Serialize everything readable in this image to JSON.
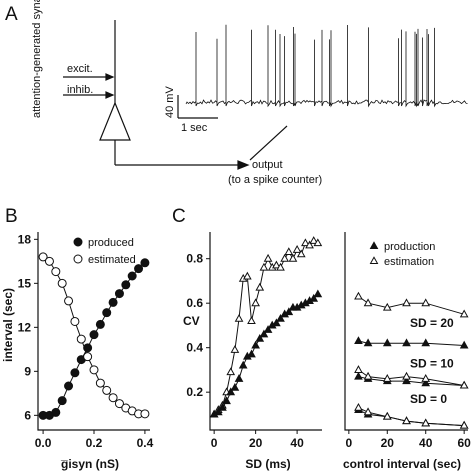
{
  "panels": {
    "a": "A",
    "b": "B",
    "c": "C"
  },
  "diagram_a": {
    "input_label": "attention-generated synaptic activity",
    "excit_label": "excit.",
    "inhib_label": "inhib.",
    "output_label": "output",
    "output_sub_label": "(to a spike counter)",
    "scale_mv": "40 mV",
    "scale_sec": "1 sec"
  },
  "chart_data": [
    {
      "type": "line",
      "panel": "B",
      "xlabel": "g̅isyn (nS)",
      "ylabel": "interval (sec)",
      "xlim": [
        -0.02,
        0.42
      ],
      "ylim": [
        5,
        18.5
      ],
      "xticks": [
        "0.0",
        "0.2",
        "0.4"
      ],
      "xtick_values": [
        0.0,
        0.2,
        0.4
      ],
      "yticks": [
        "6",
        "9",
        "12",
        "15",
        "18"
      ],
      "ytick_values": [
        6,
        9,
        12,
        15,
        18
      ],
      "x": [
        0.0,
        0.025,
        0.05,
        0.075,
        0.1,
        0.125,
        0.15,
        0.175,
        0.2,
        0.225,
        0.25,
        0.275,
        0.3,
        0.325,
        0.35,
        0.375,
        0.4
      ],
      "legend_position": "top-right",
      "series": [
        {
          "name": "produced",
          "marker": "filled-circle",
          "values": [
            6.0,
            6.0,
            6.2,
            7.0,
            8.0,
            8.9,
            9.8,
            10.6,
            11.5,
            12.2,
            13.0,
            13.7,
            14.3,
            14.9,
            15.5,
            16.0,
            16.4
          ]
        },
        {
          "name": "estimated",
          "marker": "open-circle",
          "values": [
            16.8,
            16.5,
            15.8,
            15.0,
            13.8,
            12.4,
            11.2,
            10.0,
            9.1,
            8.2,
            7.7,
            7.2,
            6.8,
            6.5,
            6.3,
            6.1,
            6.1
          ]
        }
      ]
    },
    {
      "type": "line",
      "panel": "C-left",
      "xlabel": "SD (ms)",
      "ylabel": "CV",
      "xlim": [
        -2,
        52
      ],
      "ylim": [
        0.03,
        0.92
      ],
      "xticks": [
        "0",
        "20",
        "40"
      ],
      "xtick_values": [
        0,
        20,
        40
      ],
      "yticks": [
        "0.2",
        "0.4",
        "0.6",
        "0.8"
      ],
      "ytick_values": [
        0.2,
        0.4,
        0.6,
        0.8
      ],
      "series": [
        {
          "name": "estimation",
          "marker": "open-triangle",
          "x": [
            0,
            2,
            4,
            6,
            8,
            10,
            12,
            14,
            16,
            18,
            20,
            22,
            24,
            26,
            28,
            30,
            32,
            34,
            36,
            38,
            40,
            42,
            44,
            46,
            48,
            50
          ],
          "values": [
            0.1,
            0.12,
            0.14,
            0.2,
            0.29,
            0.39,
            0.53,
            0.71,
            0.72,
            0.52,
            0.6,
            0.67,
            0.76,
            0.8,
            0.76,
            0.77,
            0.76,
            0.8,
            0.83,
            0.8,
            0.84,
            0.82,
            0.87,
            0.86,
            0.88,
            0.87
          ]
        },
        {
          "name": "production",
          "marker": "filled-triangle",
          "x": [
            0,
            2,
            4,
            6,
            8,
            10,
            12,
            14,
            16,
            18,
            20,
            22,
            24,
            26,
            28,
            30,
            32,
            34,
            36,
            38,
            40,
            42,
            44,
            46,
            48,
            50
          ],
          "values": [
            0.1,
            0.11,
            0.13,
            0.16,
            0.2,
            0.22,
            0.26,
            0.32,
            0.36,
            0.37,
            0.41,
            0.44,
            0.46,
            0.48,
            0.5,
            0.51,
            0.53,
            0.55,
            0.56,
            0.58,
            0.58,
            0.59,
            0.6,
            0.61,
            0.62,
            0.64
          ]
        }
      ]
    },
    {
      "type": "line",
      "panel": "C-right",
      "xlabel": "control interval (sec)",
      "xlim": [
        -2,
        62
      ],
      "ylim": [
        0.03,
        0.92
      ],
      "xticks": [
        "0",
        "20",
        "40",
        "60"
      ],
      "xtick_values": [
        0,
        20,
        40,
        60
      ],
      "legend_position": "top",
      "series": [
        {
          "name": "production",
          "marker": "filled-triangle",
          "group": "SD = 20",
          "x": [
            5,
            10,
            20,
            30,
            40,
            60
          ],
          "values": [
            0.43,
            0.42,
            0.42,
            0.42,
            0.42,
            0.41
          ]
        },
        {
          "name": "estimation",
          "marker": "open-triangle",
          "group": "SD = 20",
          "x": [
            5,
            10,
            20,
            30,
            40,
            60
          ],
          "values": [
            0.63,
            0.6,
            0.58,
            0.6,
            0.6,
            0.55
          ]
        },
        {
          "name": "production",
          "marker": "filled-triangle",
          "group": "SD = 10",
          "x": [
            5,
            10,
            20,
            30,
            40,
            60
          ],
          "values": [
            0.27,
            0.26,
            0.25,
            0.25,
            0.24,
            0.23
          ]
        },
        {
          "name": "estimation",
          "marker": "open-triangle",
          "group": "SD = 10",
          "x": [
            5,
            10,
            20,
            30,
            40,
            60
          ],
          "values": [
            0.3,
            0.27,
            0.26,
            0.27,
            0.26,
            0.23
          ]
        },
        {
          "name": "production",
          "marker": "filled-triangle",
          "group": "SD = 0",
          "x": [
            5,
            10,
            20,
            30,
            40,
            60
          ],
          "values": [
            0.12,
            0.1,
            0.09,
            0.07,
            0.06,
            0.05
          ]
        },
        {
          "name": "estimation",
          "marker": "open-triangle",
          "group": "SD = 0",
          "x": [
            5,
            10,
            20,
            30,
            40,
            60
          ],
          "values": [
            0.13,
            0.11,
            0.09,
            0.07,
            0.06,
            0.05
          ]
        }
      ],
      "annotations": [
        "SD = 20",
        "SD = 10",
        "SD = 0"
      ]
    }
  ]
}
